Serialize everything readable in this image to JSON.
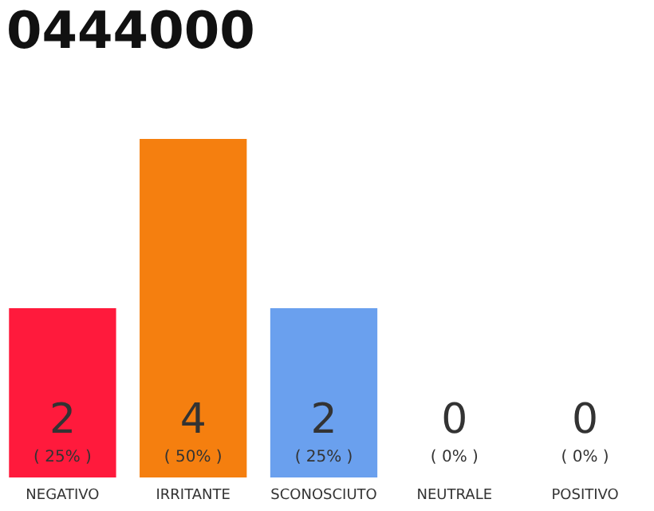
{
  "chart_data": {
    "type": "bar",
    "title": "0444000",
    "categories": [
      "NEGATIVO",
      "IRRITANTE",
      "SCONOSCIUTO",
      "NEUTRALE",
      "POSITIVO"
    ],
    "values": [
      2,
      4,
      2,
      0,
      0
    ],
    "colors": [
      "#ff1a3c",
      "#f57f0f",
      "#6aa0ee",
      "#eeeeee",
      "#eeeeee"
    ],
    "annotations": [
      "( 25% )",
      "( 50% )",
      "( 25% )",
      "( 0% )",
      "( 0% )"
    ],
    "data_labels": true
  }
}
